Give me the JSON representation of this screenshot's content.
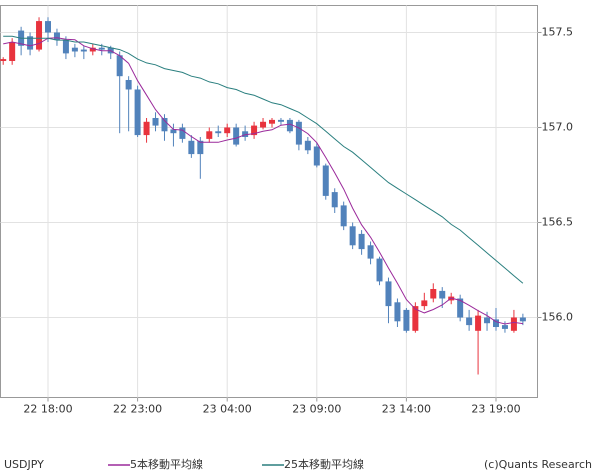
{
  "chart_data": {
    "type": "candlestick",
    "symbol": "USDJPY",
    "credit": "(c)Quants Research",
    "categories": [
      null,
      null,
      null,
      null,
      null,
      "22 18:00",
      null,
      null,
      null,
      null,
      null,
      null,
      null,
      null,
      null,
      "22 23:00",
      null,
      null,
      null,
      null,
      null,
      null,
      null,
      null,
      null,
      "23 04:00",
      null,
      null,
      null,
      null,
      null,
      null,
      null,
      null,
      null,
      "23 09:00",
      null,
      null,
      null,
      null,
      null,
      null,
      null,
      null,
      null,
      "23 14:00",
      null,
      null,
      null,
      null,
      null,
      null,
      null,
      null,
      null,
      "23 19:00",
      null,
      null,
      null
    ],
    "open": [
      157.35,
      157.35,
      157.51,
      157.48,
      157.41,
      157.56,
      157.5,
      157.46,
      157.42,
      157.41,
      157.4,
      157.42,
      157.42,
      157.38,
      157.25,
      157.2,
      156.96,
      157.05,
      157.05,
      156.99,
      157.0,
      156.93,
      156.93,
      156.94,
      156.98,
      156.97,
      157.0,
      156.98,
      156.96,
      157.0,
      157.02,
      157.04,
      157.04,
      157.03,
      156.93,
      156.9,
      156.8,
      156.66,
      156.59,
      156.48,
      156.44,
      156.38,
      156.31,
      156.19,
      156.08,
      156.04,
      155.93,
      156.06,
      156.1,
      156.14,
      156.09,
      156.1,
      156.0,
      155.93,
      156.0,
      155.99,
      155.96,
      155.93,
      156.0
    ],
    "high": [
      157.37,
      157.47,
      157.53,
      157.5,
      157.58,
      157.58,
      157.52,
      157.48,
      157.44,
      157.43,
      157.44,
      157.44,
      157.43,
      157.4,
      157.27,
      157.22,
      157.05,
      157.08,
      157.07,
      157.02,
      157.02,
      156.96,
      156.95,
      157.0,
      157.01,
      157.02,
      157.02,
      157.01,
      157.03,
      157.05,
      157.05,
      157.05,
      157.05,
      157.04,
      156.95,
      156.92,
      156.81,
      156.68,
      156.61,
      156.5,
      156.46,
      156.4,
      156.32,
      156.21,
      156.1,
      156.05,
      156.08,
      156.13,
      156.18,
      156.16,
      156.13,
      156.12,
      156.04,
      156.04,
      156.03,
      156.05,
      155.98,
      156.04,
      156.02
    ],
    "low": [
      157.33,
      157.33,
      157.38,
      157.38,
      157.4,
      157.45,
      157.43,
      157.36,
      157.37,
      157.36,
      157.38,
      157.38,
      157.36,
      156.97,
      156.98,
      156.95,
      156.92,
      156.98,
      156.93,
      156.9,
      156.92,
      156.84,
      156.73,
      156.92,
      156.95,
      156.95,
      156.9,
      156.93,
      156.94,
      156.99,
      157.0,
      157.01,
      156.97,
      156.88,
      156.86,
      156.79,
      156.62,
      156.55,
      156.46,
      156.36,
      156.33,
      156.28,
      156.17,
      155.97,
      155.95,
      155.92,
      155.92,
      156.04,
      156.08,
      156.05,
      156.07,
      155.98,
      155.93,
      155.7,
      155.93,
      155.93,
      155.92,
      155.92,
      155.96
    ],
    "close": [
      157.36,
      157.45,
      157.43,
      157.41,
      157.56,
      157.5,
      157.46,
      157.39,
      157.4,
      157.4,
      157.42,
      157.41,
      157.39,
      157.27,
      157.2,
      156.96,
      157.03,
      157.01,
      156.98,
      156.97,
      156.94,
      156.86,
      156.86,
      156.98,
      156.97,
      157.0,
      156.91,
      156.95,
      157.01,
      157.03,
      157.04,
      157.03,
      156.98,
      156.91,
      156.88,
      156.8,
      156.64,
      156.58,
      156.48,
      156.38,
      156.36,
      156.31,
      156.19,
      156.06,
      155.98,
      155.93,
      156.06,
      156.09,
      156.15,
      156.1,
      156.11,
      156.0,
      155.96,
      156.01,
      155.97,
      155.95,
      155.94,
      156.0,
      155.98
    ],
    "up_color": "#e8333d",
    "down_color": "#5182bb",
    "series": [
      {
        "name": "5本移動平均線",
        "color": "#9b2a9b",
        "values": [
          157.44,
          157.45,
          157.44,
          157.43,
          157.442,
          157.47,
          157.472,
          157.464,
          157.462,
          157.43,
          157.414,
          157.404,
          157.404,
          157.378,
          157.338,
          157.246,
          157.17,
          157.094,
          157.036,
          156.99,
          156.986,
          156.952,
          156.922,
          156.922,
          156.922,
          156.934,
          156.944,
          156.962,
          156.968,
          156.98,
          156.988,
          157.012,
          157.018,
          156.998,
          156.968,
          156.92,
          156.842,
          156.762,
          156.676,
          156.576,
          156.488,
          156.422,
          156.344,
          156.26,
          156.18,
          156.094,
          156.044,
          156.024,
          156.042,
          156.066,
          156.102,
          156.09,
          156.064,
          156.036,
          156.01,
          155.978,
          155.966,
          155.974,
          155.968
        ]
      },
      {
        "name": "25本移動平均線",
        "color": "#2a7f7f",
        "values": [
          157.48,
          157.48,
          157.47,
          157.47,
          157.47,
          157.47,
          157.46,
          157.46,
          157.45,
          157.45,
          157.44,
          157.43,
          157.42,
          157.41,
          157.39,
          157.36,
          157.34,
          157.33,
          157.31,
          157.3,
          157.29,
          157.27,
          157.26,
          157.24,
          157.23,
          157.21,
          157.2,
          157.18,
          157.17,
          157.15,
          157.13,
          157.12,
          157.1,
          157.08,
          157.05,
          157.02,
          156.98,
          156.94,
          156.9,
          156.87,
          156.83,
          156.79,
          156.75,
          156.71,
          156.68,
          156.65,
          156.62,
          156.59,
          156.56,
          156.53,
          156.49,
          156.46,
          156.42,
          156.38,
          156.34,
          156.3,
          156.26,
          156.22,
          156.18
        ]
      }
    ],
    "ylim": [
      155.579,
      157.642
    ],
    "yticks": [
      {
        "value": 156,
        "label": "156.0"
      },
      156.5,
      {
        "value": 157,
        "label": "157.0"
      },
      157.5
    ],
    "grid": true
  }
}
